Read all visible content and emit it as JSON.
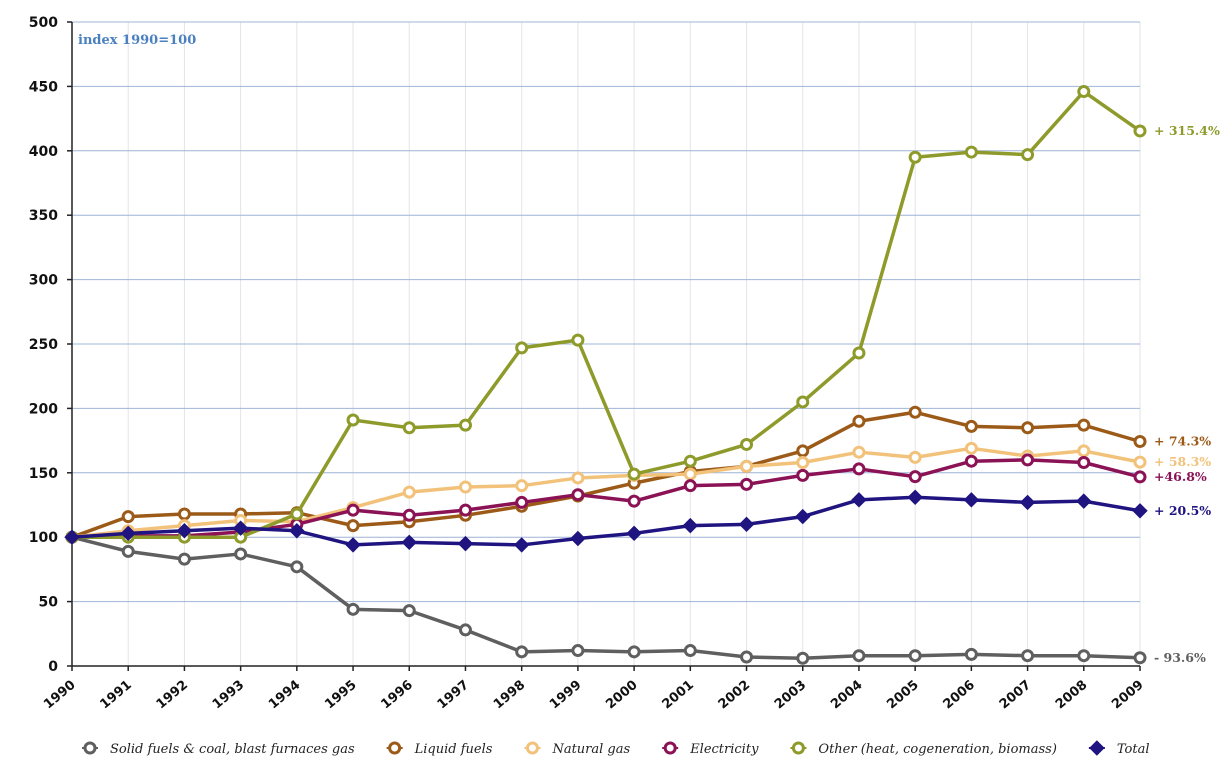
{
  "chart_data": {
    "type": "line",
    "note": "index 1990=100",
    "x": [
      "1990",
      "1991",
      "1992",
      "1993",
      "1994",
      "1995",
      "1996",
      "1997",
      "1998",
      "1999",
      "2000",
      "2001",
      "2002",
      "2003",
      "2004",
      "2005",
      "2006",
      "2007",
      "2008",
      "2009"
    ],
    "ylim": [
      0,
      500
    ],
    "yticks": [
      0,
      50,
      100,
      150,
      200,
      250,
      300,
      350,
      400,
      450,
      500
    ],
    "grid": true,
    "legend_position": "bottom",
    "series": [
      {
        "name": "Solid fuels & coal, blast furnaces gas",
        "color": "#5f5f5f",
        "marker": "circle",
        "end_label": "- 93.6%",
        "values": [
          100,
          89,
          83,
          87,
          77,
          44,
          43,
          28,
          11,
          12,
          11,
          12,
          7,
          6,
          8,
          8,
          9,
          8,
          8,
          6.4
        ]
      },
      {
        "name": "Liquid fuels",
        "color": "#9c5a18",
        "marker": "circle",
        "end_label": "+ 74.3%",
        "values": [
          100,
          116,
          118,
          118,
          119,
          109,
          112,
          117,
          124,
          132,
          142,
          151,
          155,
          167,
          190,
          197,
          186,
          185,
          187,
          174.3
        ]
      },
      {
        "name": "Natural gas",
        "color": "#f2c27a",
        "marker": "circle",
        "end_label": "+ 58.3%",
        "values": [
          100,
          105,
          109,
          113,
          112,
          123,
          135,
          139,
          140,
          146,
          148,
          149,
          155,
          158,
          166,
          162,
          169,
          163,
          167,
          158.3
        ]
      },
      {
        "name": "Electricity",
        "color": "#8a1255",
        "marker": "circle",
        "end_label": "+46.8%",
        "values": [
          100,
          101,
          101,
          104,
          110,
          121,
          117,
          121,
          127,
          133,
          128,
          140,
          141,
          148,
          153,
          147,
          159,
          160,
          158,
          146.8
        ]
      },
      {
        "name": "Other (heat, cogeneration, biomass)",
        "color": "#8e9a2a",
        "marker": "circle",
        "end_label": "+ 315.4%",
        "values": [
          100,
          100,
          100,
          100,
          118,
          191,
          185,
          187,
          247,
          253,
          149,
          159,
          172,
          205,
          243,
          395,
          399,
          397,
          446,
          415.4
        ]
      },
      {
        "name": "Total",
        "color": "#1f1480",
        "marker": "diamond",
        "end_label": "+ 20.5%",
        "values": [
          100,
          103,
          105,
          107,
          105,
          94,
          96,
          95,
          94,
          99,
          103,
          109,
          110,
          116,
          129,
          131,
          129,
          127,
          128,
          120.5
        ]
      }
    ]
  }
}
